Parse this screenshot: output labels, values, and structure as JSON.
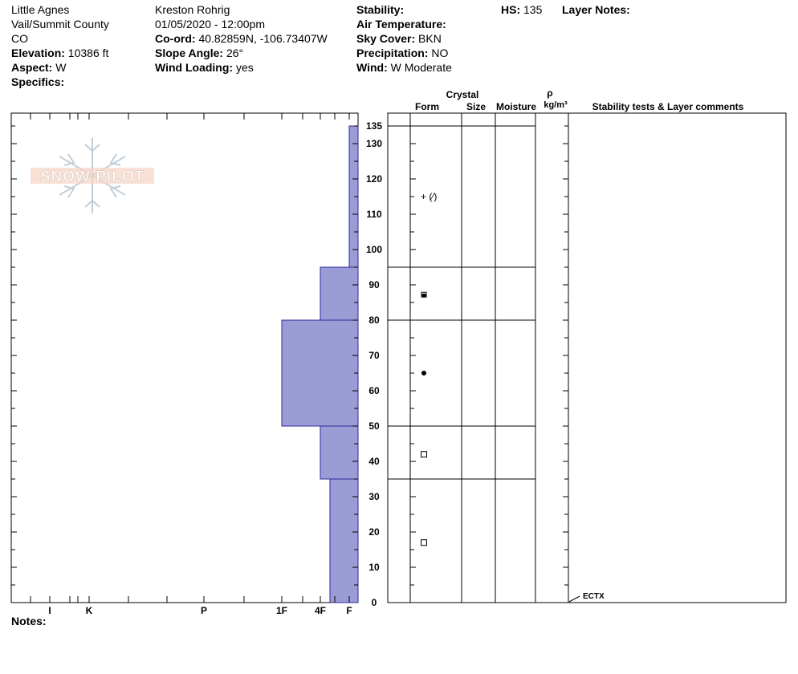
{
  "header": {
    "col1": {
      "location": "Little Agnes",
      "region": "Vail/Summit County",
      "state": "CO",
      "elevation_label": "Elevation:",
      "elevation_value": "10386 ft",
      "aspect_label": "Aspect:",
      "aspect_value": "W",
      "specifics_label": "Specifics:"
    },
    "col2": {
      "observer": "Kreston Rohrig",
      "datetime": "01/05/2020 - 12:00pm",
      "coord_label": "Co-ord:",
      "coord_value": "40.82859N, -106.73407W",
      "slope_label": "Slope Angle:",
      "slope_value": "26°",
      "wind_loading_label": "Wind Loading:",
      "wind_loading_value": "yes"
    },
    "col3": {
      "stability_label": "Stability:",
      "air_temp_label": "Air Temperature:",
      "sky_label": "Sky Cover:",
      "sky_value": "BKN",
      "precip_label": "Precipitation:",
      "precip_value": "NO",
      "wind_label": "Wind:",
      "wind_value": "W Moderate"
    },
    "hs_label": "HS:",
    "hs_value": "135",
    "layer_notes_label": "Layer Notes:"
  },
  "notes_label": "Notes:",
  "logo_text": "SNOW PILOT",
  "table_headers": {
    "crystal": "Crystal",
    "form": "Form",
    "size": "Size",
    "moisture": "Moisture",
    "rho": "ρ",
    "density_unit": "kg/m³",
    "comments": "Stability tests & Layer comments"
  },
  "chart_data": {
    "type": "bar",
    "title": "",
    "xlabel": "",
    "ylabel": "",
    "ylim": [
      0,
      135
    ],
    "hardness_scale": [
      "I",
      "K",
      "P",
      "1F",
      "4F",
      "F"
    ],
    "y_ticks": [
      0,
      10,
      20,
      30,
      40,
      50,
      60,
      70,
      80,
      90,
      100,
      110,
      120,
      130,
      135
    ],
    "colors": {
      "bar_fill": "#9b9bd6",
      "bar_stroke": "#2b2b9a"
    },
    "layers": [
      {
        "bottom": 0,
        "top": 35,
        "hardness": "F+",
        "form": "facets"
      },
      {
        "bottom": 35,
        "top": 50,
        "hardness": "4F",
        "form": "facets"
      },
      {
        "bottom": 50,
        "top": 80,
        "hardness": "1F",
        "form": "rounds"
      },
      {
        "bottom": 80,
        "top": 95,
        "hardness": "4F",
        "form": "rounding facets"
      },
      {
        "bottom": 95,
        "top": 135,
        "hardness": "F",
        "form": "new snow / decomposing"
      }
    ],
    "grain_symbols": [
      {
        "y": 115,
        "text": "+ (⁄)"
      },
      {
        "y": 87,
        "text": "rounding-facet"
      },
      {
        "y": 65,
        "text": "rounds"
      },
      {
        "y": 42,
        "text": "facets"
      },
      {
        "y": 17,
        "text": "facets"
      }
    ],
    "tests": [
      {
        "y": 0,
        "text": "ECTX"
      }
    ]
  }
}
